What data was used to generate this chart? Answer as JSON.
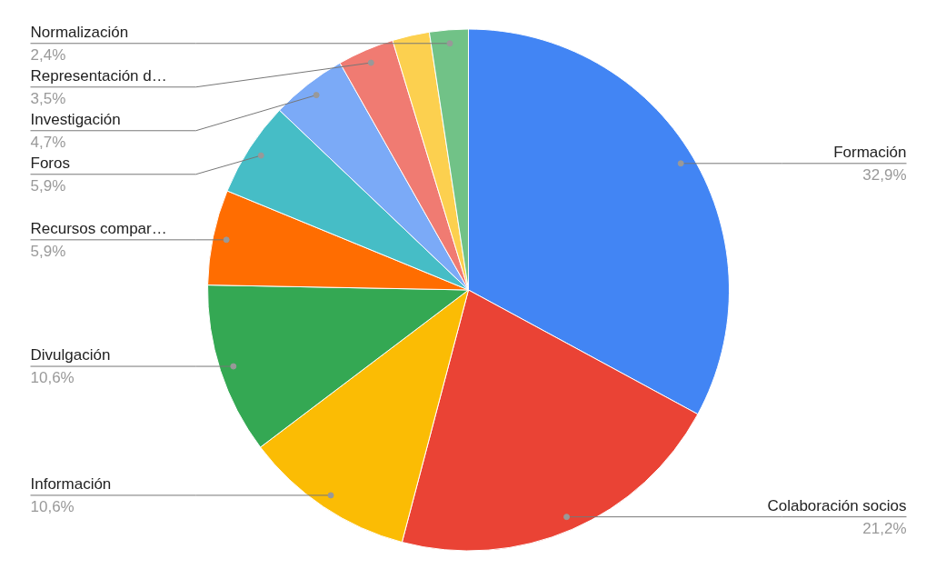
{
  "chart_data": {
    "type": "pie",
    "categories": [
      "Formación",
      "Colaboración socios",
      "Información",
      "Divulgación",
      "Recursos compar…",
      "Foros",
      "Investigación",
      "Representación d…",
      null,
      "Normalización"
    ],
    "values": [
      32.9,
      21.2,
      10.6,
      10.6,
      5.9,
      5.9,
      4.7,
      3.5,
      2.3,
      2.4
    ],
    "colors": [
      "#4285f4",
      "#ea4335",
      "#fbbc04",
      "#34a853",
      "#ff6d01",
      "#46bdc6",
      "#7baaf7",
      "#f07b72",
      "#fcd04f",
      "#71c287"
    ],
    "value_labels": [
      "32,9%",
      "21,2%",
      "10,6%",
      "10,6%",
      "5,9%",
      "5,9%",
      "4,7%",
      "3,5%",
      null,
      "2,4%"
    ]
  }
}
